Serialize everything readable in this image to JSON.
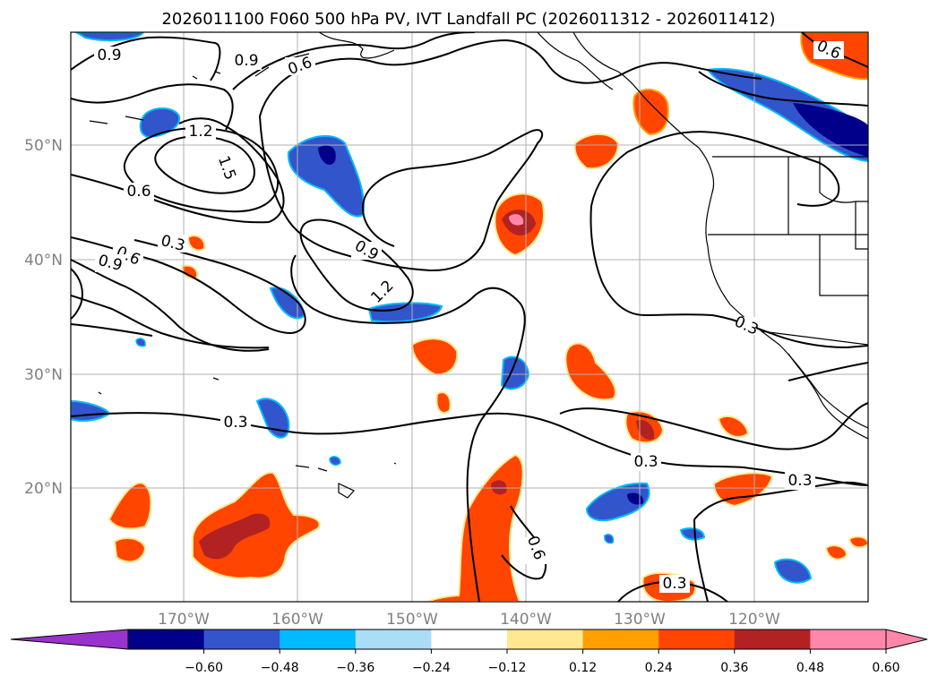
{
  "title": "2026011100 F060 500 hPa PV, IVT Landfall PC (2026011312 - 2026011412)",
  "map": {
    "lon_ticks": [
      "170°W",
      "160°W",
      "150°W",
      "140°W",
      "130°W",
      "120°W"
    ],
    "lat_ticks": [
      "50°N",
      "40°N",
      "30°N",
      "20°N"
    ],
    "contour_labels": [
      "0.9",
      "0.9",
      "0.6",
      "1.2",
      "1.5",
      "0.6",
      "0.3",
      "0.6",
      "0.9",
      "0.9",
      "1.2",
      "0.3",
      "0.3",
      "0.3",
      "0.6",
      "0.3",
      "0.6",
      "0.3"
    ]
  },
  "colorbar": {
    "ticks": [
      "−0.60",
      "−0.48",
      "−0.36",
      "−0.24",
      "−0.12",
      "0.12",
      "0.24",
      "0.36",
      "0.48",
      "0.60"
    ],
    "colors": [
      "#9933cc",
      "#00008b",
      "#3355cc",
      "#00bbff",
      "#aaddf8",
      "#ffffff",
      "#ffe890",
      "#ffa000",
      "#ff4500",
      "#b22222",
      "#ff88aa",
      "#ff88aa"
    ]
  }
}
